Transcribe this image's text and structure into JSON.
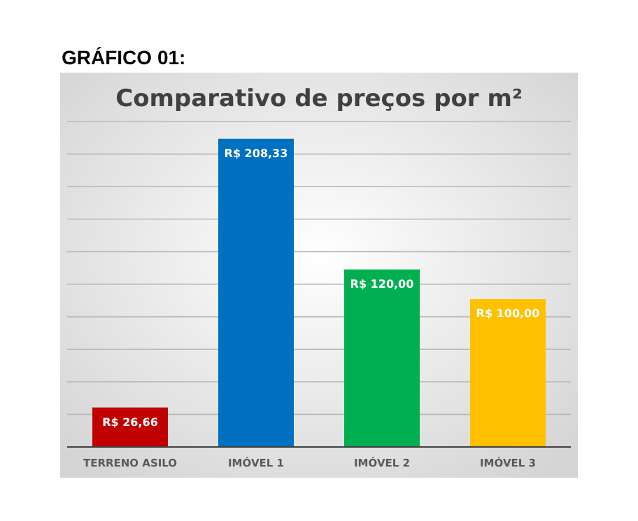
{
  "chart_data": {
    "type": "bar",
    "title": "Comparativo de preços por m²",
    "annotations": [
      "GRÁFICO 01:"
    ],
    "categories": [
      "TERRENO ASILO",
      "IMÓVEL 1",
      "IMÓVEL 2",
      "IMÓVEL 3"
    ],
    "values": [
      26.66,
      208.33,
      120,
      100
    ],
    "colors": [
      "#c00000",
      "#0070c0",
      "#00b050",
      "#ffc000"
    ],
    "value_labels": [
      "R$ 26,66",
      "R$ 208,33",
      "R$ 120,00",
      "R$ 100,00"
    ],
    "ylim": [
      0,
      220
    ],
    "yticks": [
      {
        "value": 0,
        "label": null
      },
      {
        "value": 22,
        "label": null
      },
      {
        "value": 44,
        "label": null
      },
      {
        "value": 66,
        "label": null
      },
      {
        "value": 88,
        "label": null
      },
      {
        "value": 110,
        "label": null
      },
      {
        "value": 132,
        "label": null
      },
      {
        "value": 154,
        "label": null
      },
      {
        "value": 176,
        "label": null
      },
      {
        "value": 198,
        "label": null
      },
      {
        "value": 220,
        "label": null
      }
    ],
    "grid": "y",
    "tick_labels": "x"
  }
}
